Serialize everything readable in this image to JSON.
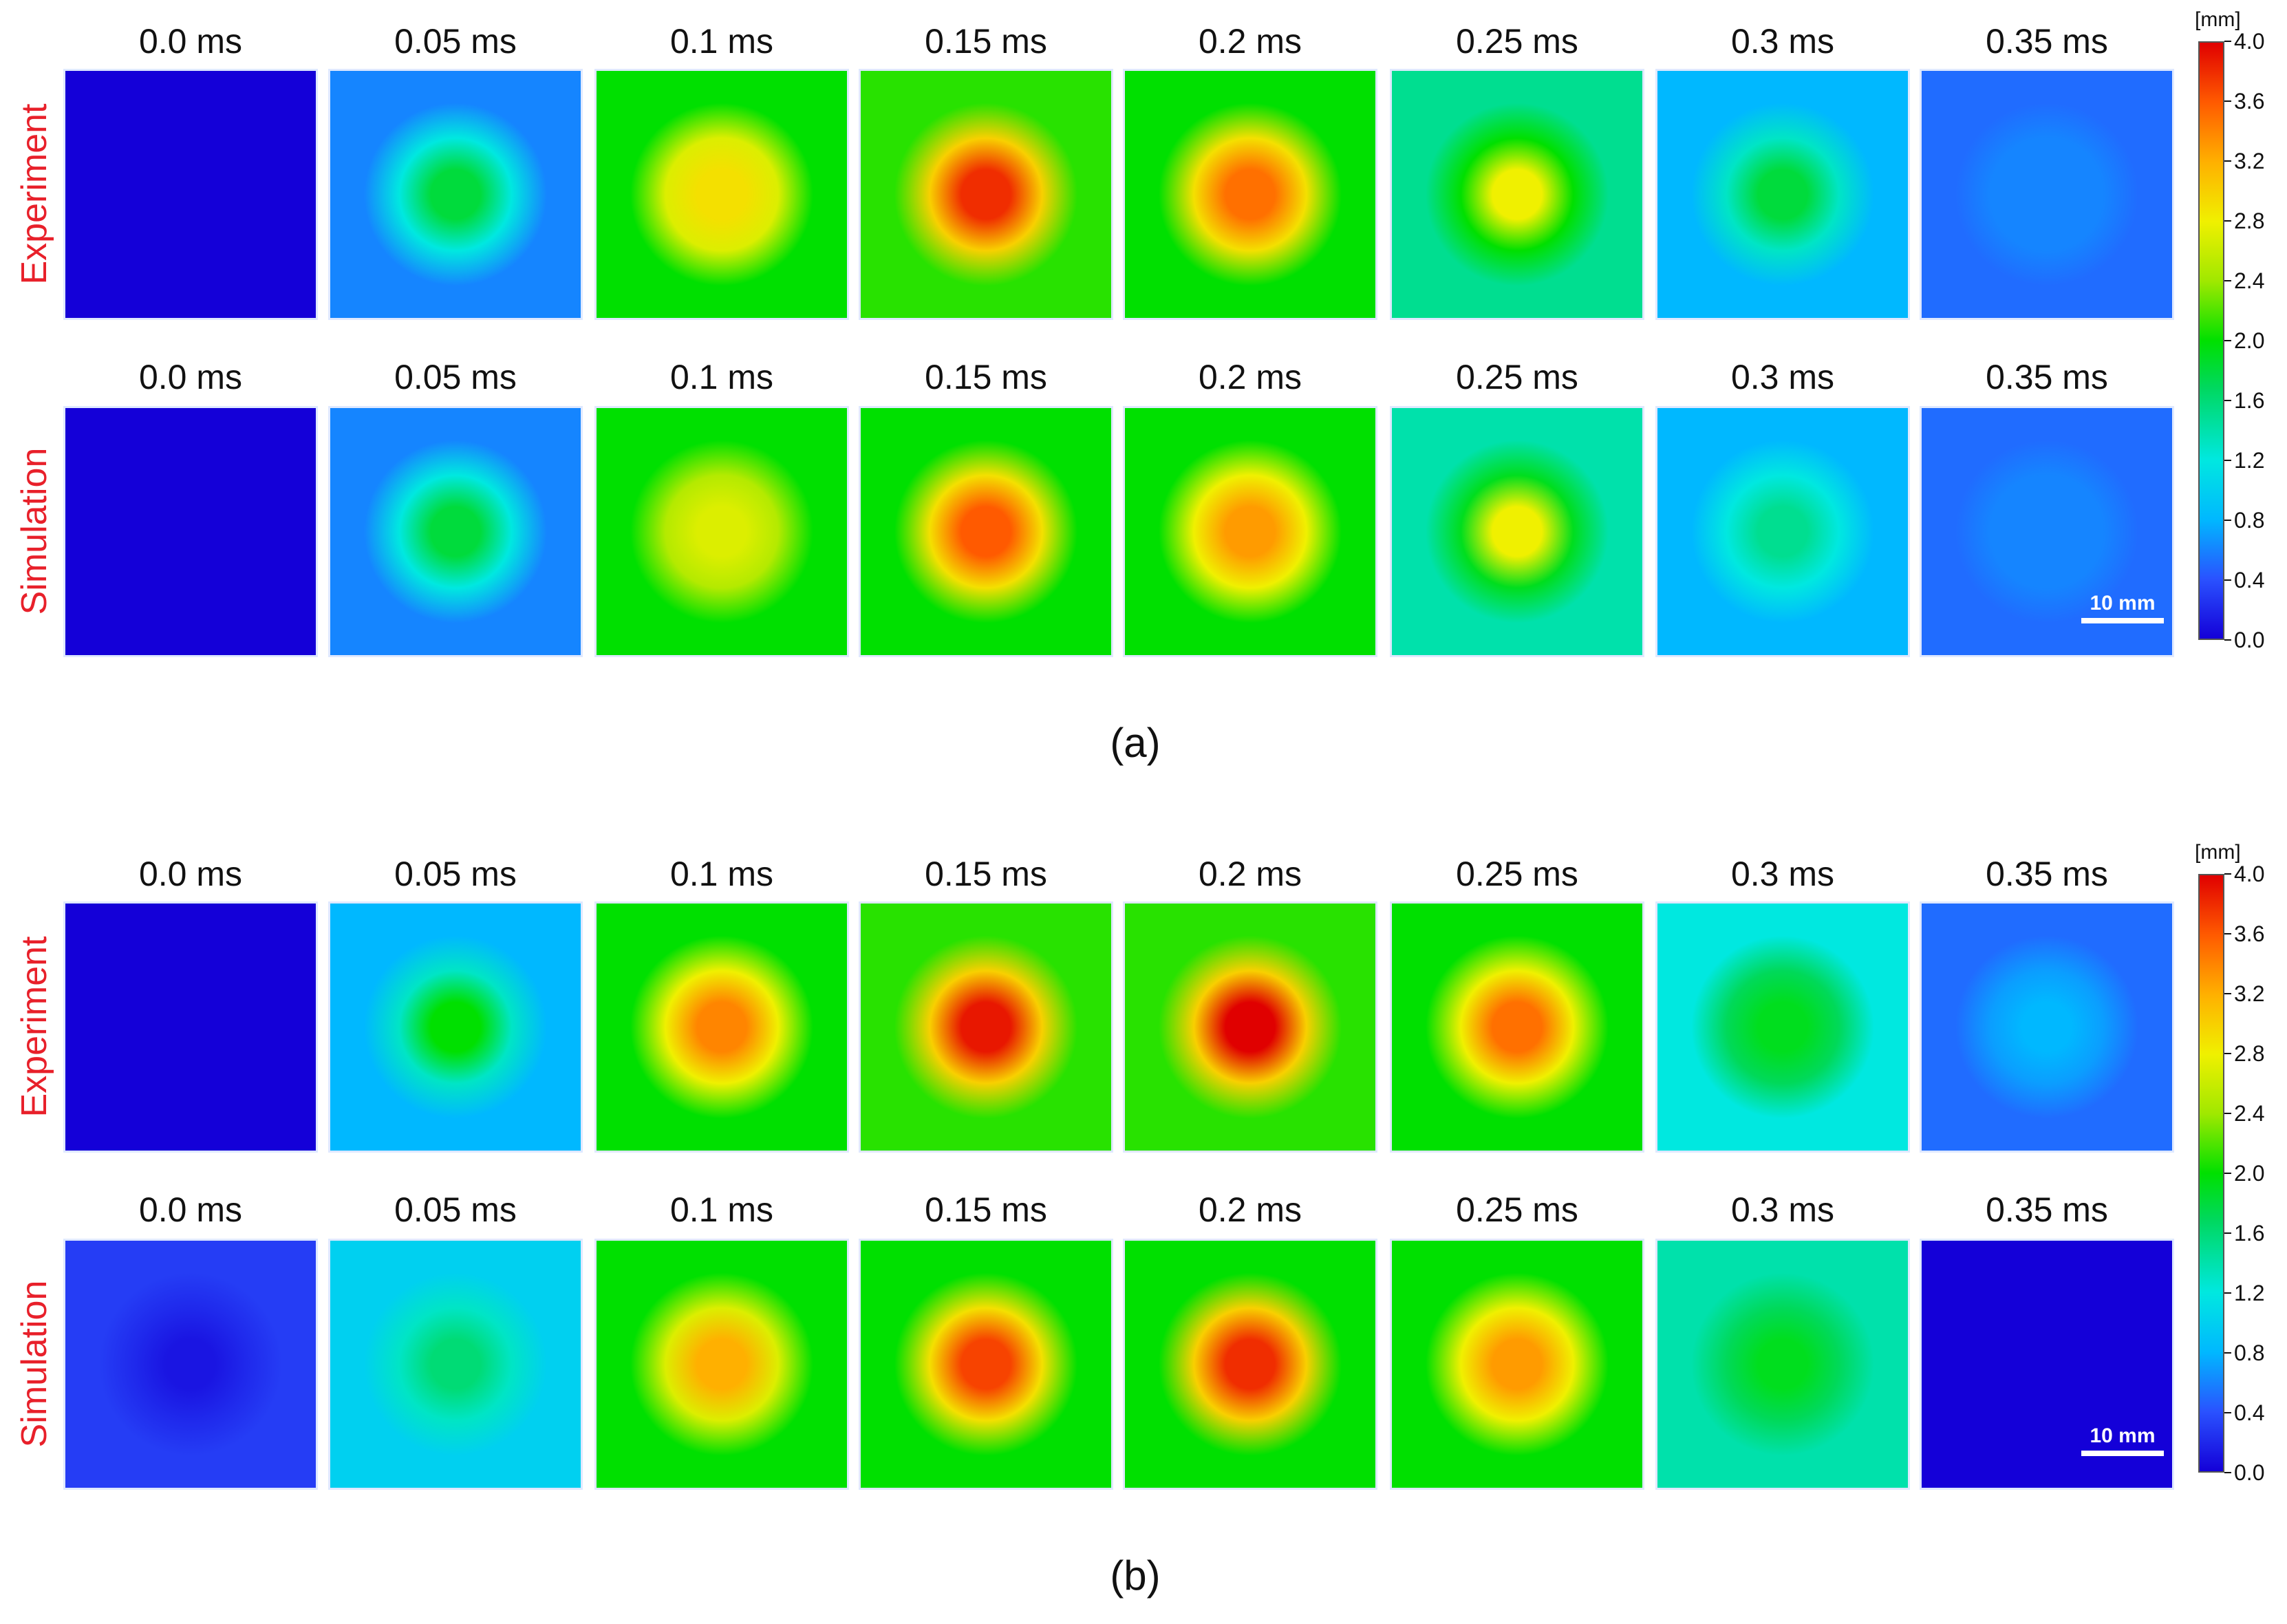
{
  "panels": [
    {
      "caption": "(a)",
      "rows": [
        {
          "label": "Experiment",
          "times": [
            "0.0 ms",
            "0.05 ms",
            "0.1 ms",
            "0.15 ms",
            "0.2 ms",
            "0.25 ms",
            "0.3 ms",
            "0.35 ms"
          ],
          "center_values": [
            0.0,
            1.8,
            2.9,
            3.8,
            3.5,
            2.8,
            1.8,
            0.6
          ],
          "edge_values": [
            0.0,
            0.6,
            2.0,
            2.1,
            2.0,
            1.5,
            0.8,
            0.5
          ],
          "ring_values": [
            0.0,
            1.2,
            2.7,
            3.0,
            2.9,
            2.0,
            1.3,
            0.6
          ]
        },
        {
          "label": "Simulation",
          "times": [
            "0.0 ms",
            "0.05 ms",
            "0.1 ms",
            "0.15 ms",
            "0.2 ms",
            "0.25 ms",
            "0.3 ms",
            "0.35 ms"
          ],
          "center_values": [
            0.0,
            1.8,
            2.7,
            3.6,
            3.3,
            2.8,
            1.5,
            0.6
          ],
          "edge_values": [
            0.0,
            0.6,
            2.0,
            2.0,
            2.0,
            1.4,
            0.8,
            0.5
          ],
          "ring_values": [
            0.0,
            1.2,
            2.5,
            2.9,
            2.8,
            1.9,
            1.2,
            0.6
          ],
          "scale_bar": "10 mm"
        }
      ]
    },
    {
      "caption": "(b)",
      "rows": [
        {
          "label": "Experiment",
          "times": [
            "0.0 ms",
            "0.05 ms",
            "0.1 ms",
            "0.15 ms",
            "0.2 ms",
            "0.25 ms",
            "0.3 ms",
            "0.35 ms"
          ],
          "center_values": [
            0.0,
            2.0,
            3.4,
            3.9,
            4.0,
            3.5,
            1.9,
            0.8
          ],
          "edge_values": [
            0.0,
            0.8,
            2.0,
            2.1,
            2.1,
            2.0,
            1.2,
            0.5
          ],
          "ring_values": [
            0.0,
            1.3,
            2.8,
            3.0,
            3.0,
            2.8,
            1.7,
            0.7
          ]
        },
        {
          "label": "Simulation",
          "times": [
            "0.0 ms",
            "0.05 ms",
            "0.1 ms",
            "0.15 ms",
            "0.2 ms",
            "0.25 ms",
            "0.3 ms",
            "0.35 ms"
          ],
          "center_values": [
            0.1,
            1.6,
            3.2,
            3.7,
            3.8,
            3.3,
            1.9,
            0.0
          ],
          "edge_values": [
            0.3,
            1.0,
            2.0,
            2.0,
            2.0,
            2.0,
            1.4,
            0.0
          ],
          "ring_values": [
            0.2,
            1.3,
            2.7,
            2.9,
            3.0,
            2.8,
            1.7,
            0.0
          ],
          "scale_bar": "10 mm"
        }
      ]
    }
  ],
  "colorbar": {
    "unit": "[mm]",
    "ticks": [
      "4.0",
      "3.6",
      "3.2",
      "2.8",
      "2.4",
      "2.0",
      "1.6",
      "1.2",
      "0.8",
      "0.4",
      "0.0"
    ],
    "range": [
      0.0,
      4.0
    ]
  }
}
